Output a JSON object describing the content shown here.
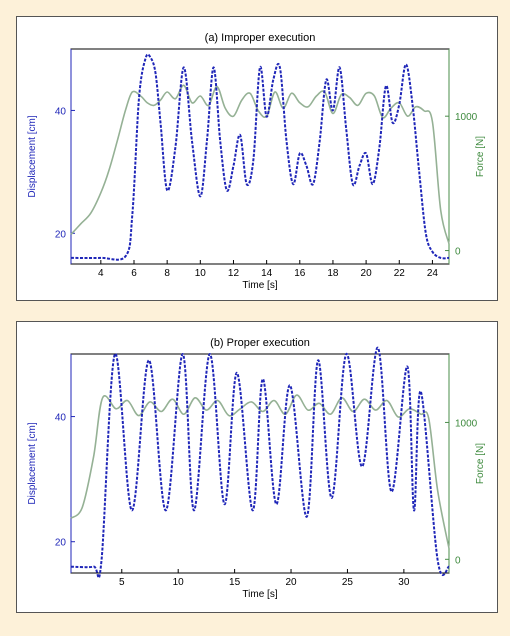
{
  "colors": {
    "displacement": "#1f26b8",
    "force": "#95b195",
    "page_bg": "#fdf1d9"
  },
  "chart_data": [
    {
      "type": "line",
      "title": "(a) Improper execution",
      "xlabel": "Time [s]",
      "ylabel_left": "Displacement [cm]",
      "ylabel_right": "Force [N]",
      "xlim": [
        2.2,
        25
      ],
      "ylim_left": [
        15,
        50
      ],
      "ylim_right": [
        -100,
        1500
      ],
      "xticks": [
        "4",
        "6",
        "8",
        "10",
        "12",
        "14",
        "16",
        "18",
        "20",
        "22",
        "24"
      ],
      "yticks_left": [
        "20",
        "40"
      ],
      "yticks_right": [
        "0",
        "1000"
      ],
      "series": [
        {
          "name": "Displacement [cm]",
          "axis": "left",
          "style": "dashed",
          "x": [
            2.2,
            4.0,
            5.5,
            5.9,
            6.3,
            6.7,
            7.0,
            7.3,
            7.6,
            8.0,
            8.5,
            9.0,
            9.5,
            10.0,
            10.4,
            10.8,
            11.2,
            11.6,
            12.0,
            12.4,
            12.8,
            13.2,
            13.6,
            14.0,
            14.4,
            14.8,
            15.2,
            15.6,
            16.0,
            16.4,
            16.8,
            17.2,
            17.6,
            18.0,
            18.4,
            18.8,
            19.2,
            19.6,
            20.0,
            20.4,
            20.8,
            21.2,
            21.6,
            22.0,
            22.4,
            22.8,
            23.2,
            23.6,
            24.0,
            24.5,
            25.0
          ],
          "y": [
            16,
            16,
            16.3,
            23,
            42,
            48.5,
            48.6,
            46,
            38,
            27,
            34,
            47,
            35,
            26,
            35,
            47,
            35,
            27,
            31,
            36,
            28,
            32,
            47,
            39,
            45,
            47,
            35,
            28,
            33,
            31,
            28,
            35,
            45,
            40,
            47,
            37,
            28,
            31,
            33,
            28,
            34,
            44,
            38,
            41,
            47.5,
            41,
            30,
            20,
            17,
            16,
            16
          ]
        },
        {
          "name": "Force [N]",
          "axis": "right",
          "style": "solid",
          "x": [
            2.2,
            2.8,
            3.4,
            4.0,
            4.5,
            5.0,
            5.5,
            5.9,
            6.4,
            6.8,
            7.2,
            7.6,
            8.0,
            8.5,
            9.0,
            9.5,
            10.0,
            10.5,
            11.0,
            11.5,
            12.0,
            12.5,
            13.0,
            13.5,
            14.0,
            14.5,
            15.0,
            15.5,
            16.0,
            16.5,
            17.0,
            17.5,
            18.0,
            18.5,
            19.0,
            19.5,
            20.0,
            20.5,
            21.0,
            21.5,
            22.0,
            22.5,
            23.0,
            23.5,
            24.0,
            24.5,
            25.0
          ],
          "y": [
            120,
            200,
            280,
            430,
            600,
            820,
            1050,
            1180,
            1150,
            1100,
            1080,
            1120,
            1180,
            1130,
            1230,
            1100,
            1150,
            1080,
            1220,
            1060,
            1000,
            1120,
            1170,
            1040,
            1000,
            1180,
            1060,
            1170,
            1100,
            1070,
            1150,
            1180,
            1020,
            1160,
            1140,
            1080,
            1170,
            1150,
            990,
            1060,
            1100,
            1000,
            1070,
            1040,
            960,
            300,
            50
          ]
        }
      ]
    },
    {
      "type": "line",
      "title": "(b) Proper execution",
      "xlabel": "Time [s]",
      "ylabel_left": "Displacement [cm]",
      "ylabel_right": "Force [N]",
      "xlim": [
        0.5,
        34
      ],
      "ylim_left": [
        15,
        50
      ],
      "ylim_right": [
        -100,
        1500
      ],
      "xticks": [
        "5",
        "10",
        "15",
        "20",
        "25",
        "30"
      ],
      "yticks_left": [
        "20",
        "40"
      ],
      "yticks_right": [
        "0",
        "1000"
      ],
      "series": [
        {
          "name": "Displacement [cm]",
          "axis": "left",
          "style": "dashed",
          "x": [
            0.5,
            2.5,
            3.2,
            4.4,
            5.9,
            7.4,
            8.9,
            10.4,
            11.4,
            12.8,
            14.1,
            15.2,
            16.6,
            17.5,
            18.7,
            19.9,
            21.4,
            22.4,
            23.6,
            24.9,
            26.3,
            27.7,
            28.9,
            30.3,
            30.9,
            31.5,
            33.0,
            34.0
          ],
          "y": [
            16,
            16,
            17,
            50,
            25,
            49,
            25,
            50,
            25,
            50,
            26,
            47,
            25,
            46,
            26,
            45,
            24,
            49,
            27,
            50,
            32,
            51,
            28,
            48,
            25,
            44,
            17,
            16
          ]
        },
        {
          "name": "Force [N]",
          "axis": "right",
          "style": "solid",
          "x": [
            0.5,
            1.5,
            2.5,
            3.3,
            4.5,
            5.5,
            6.5,
            7.5,
            8.5,
            9.5,
            10.5,
            11.5,
            12.5,
            13.5,
            14.5,
            15.5,
            16.5,
            17.5,
            18.5,
            19.5,
            20.5,
            21.5,
            22.5,
            23.5,
            24.5,
            25.5,
            26.5,
            27.5,
            28.5,
            29.5,
            30.5,
            31.5,
            32.2,
            33.0,
            34.0
          ],
          "y": [
            300,
            380,
            750,
            1180,
            1100,
            1160,
            1050,
            1150,
            1080,
            1170,
            1060,
            1180,
            1090,
            1160,
            1050,
            1100,
            1150,
            1080,
            1160,
            1060,
            1200,
            1090,
            1140,
            1060,
            1180,
            1080,
            1170,
            1090,
            1160,
            1040,
            1100,
            1060,
            1030,
            500,
            80
          ]
        }
      ]
    }
  ]
}
